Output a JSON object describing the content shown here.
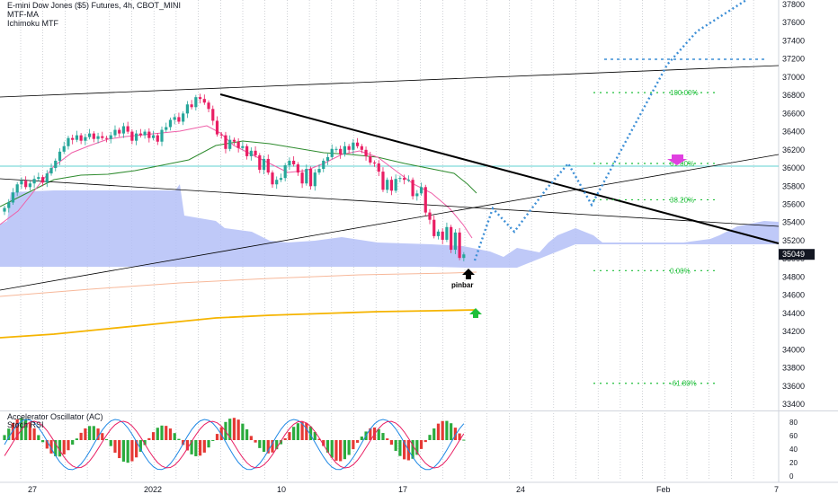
{
  "title": "E-mini Dow Jones ($5) Futures, 4h, CBOT_MINI",
  "indicators": [
    "MTF-MA",
    "Ichimoku MTF"
  ],
  "oscillator_titles": [
    "Accelerator Oscillator (AC)",
    "Stoch RSI"
  ],
  "annotations": {
    "pinbar": "pinbar"
  },
  "colors": {
    "up": "#26a69a",
    "down": "#e91e63",
    "cloud": "#b4c0f7",
    "trendline": "#000000",
    "fib": "#1fbf3a",
    "projection": "#3d8fd6",
    "ma_gold": "#f5b400",
    "ma_pink": "#ef5fa8",
    "ma_green": "#2e8b2e",
    "hline_cyan": "#5fd0d0",
    "osc_up": "#2bab3e",
    "osc_down": "#e53935",
    "arrow_green": "#1fbf3a",
    "arrow_magenta": "#e040e0"
  },
  "chart_data": [
    {
      "type": "candlestick",
      "ylim": [
        33200,
        37900
      ],
      "y_ticks": [
        "37800",
        "37600",
        "37400",
        "37200",
        "37000",
        "36800",
        "36600",
        "36400",
        "36200",
        "36000",
        "35800",
        "35600",
        "35400",
        "35200",
        "35000",
        "34800",
        "34600",
        "34400",
        "34200",
        "34000",
        "33800",
        "33600",
        "33400"
      ],
      "x_ticks": [
        "27",
        "2022",
        "10",
        "17",
        "24",
        "Feb",
        "7"
      ],
      "last_price": "35049",
      "fib_levels": [
        {
          "label": "100.00%",
          "value": 36830
        },
        {
          "label": "61.80%",
          "value": 36050
        },
        {
          "label": "38.20%",
          "value": 35650
        },
        {
          "label": "0.00%",
          "value": 34870
        },
        {
          "label": "-61.80%",
          "value": 33630
        }
      ],
      "horizontal_line": 36020,
      "closes": [
        35560,
        35620,
        35730,
        35820,
        35860,
        35790,
        35830,
        35880,
        35900,
        35840,
        35940,
        36000,
        36080,
        36180,
        36240,
        36330,
        36310,
        36360,
        36300,
        36340,
        36380,
        36320,
        36350,
        36330,
        36320,
        36360,
        36420,
        36380,
        36460,
        36400,
        36300,
        36380,
        36360,
        36400,
        36330,
        36360,
        36290,
        36420,
        36450,
        36530,
        36560,
        36510,
        36600,
        36700,
        36670,
        36780,
        36760,
        36720,
        36650,
        36520,
        36370,
        36360,
        36210,
        36310,
        36290,
        36220,
        36240,
        36130,
        36190,
        36140,
        35980,
        36100,
        35950,
        35820,
        35870,
        35890,
        36030,
        36080,
        36040,
        35950,
        35830,
        35990,
        35800,
        35950,
        35990,
        36080,
        36120,
        36210,
        36210,
        36150,
        36240,
        36200,
        36280,
        36240,
        36200,
        36130,
        36060,
        36050,
        35960,
        35760,
        35870,
        35750,
        35880,
        35890,
        35870,
        35870,
        35690,
        35720,
        35790,
        35510,
        35430,
        35250,
        35300,
        35210,
        35350,
        35100,
        35290,
        35010,
        35049
      ]
    },
    {
      "type": "oscillator",
      "ylim": [
        0,
        90
      ],
      "y_ticks": [
        "80",
        "60",
        "40",
        "20",
        "0"
      ]
    }
  ]
}
